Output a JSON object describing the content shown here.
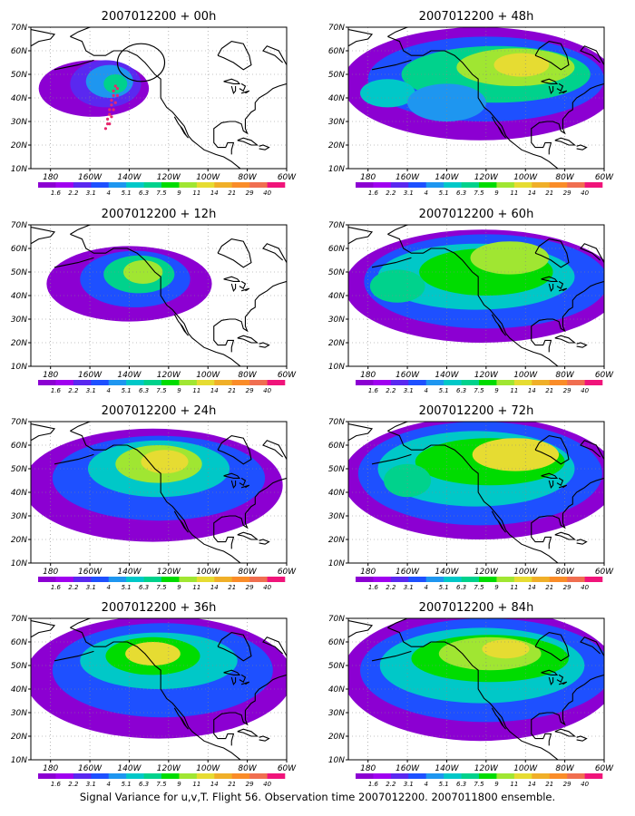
{
  "figure": {
    "caption": "Signal Variance for u,v,T. Flight 56. Observation time 2007012200. 2007011800 ensemble.",
    "lat_labels": [
      "70N",
      "60N",
      "50N",
      "40N",
      "30N",
      "20N",
      "10N"
    ],
    "lon_labels": [
      "180",
      "160W",
      "140W",
      "120W",
      "100W",
      "80W",
      "60W"
    ],
    "colorbar": {
      "labels": [
        "1.6",
        "2.2",
        "3.1",
        "4",
        "5.1",
        "6.3",
        "7.5",
        "9",
        "11",
        "14",
        "21",
        "29",
        "40"
      ],
      "colors": [
        "#8c00d2",
        "#a000f0",
        "#5a28f0",
        "#1e50ff",
        "#1e96f0",
        "#00c8c8",
        "#00d28c",
        "#00dc00",
        "#a0e632",
        "#e6dc32",
        "#f0af28",
        "#fa8c28",
        "#f06e50",
        "#f0147a"
      ]
    },
    "panels": [
      {
        "title": "2007012200 + 00h",
        "lead_hours": 0
      },
      {
        "title": "2007012200 + 48h",
        "lead_hours": 48
      },
      {
        "title": "2007012200 + 12h",
        "lead_hours": 12
      },
      {
        "title": "2007012200 + 60h",
        "lead_hours": 60
      },
      {
        "title": "2007012200 + 24h",
        "lead_hours": 24
      },
      {
        "title": "2007012200 + 72h",
        "lead_hours": 72
      },
      {
        "title": "2007012200 + 36h",
        "lead_hours": 36
      },
      {
        "title": "2007012200 + 84h",
        "lead_hours": 84
      }
    ],
    "map_extent": {
      "lon_min": -190,
      "lon_max": -60,
      "lat_min": 10,
      "lat_max": 70
    },
    "observation_track": {
      "panel": 0,
      "points": [
        [
          -152,
          27
        ],
        [
          -151,
          29
        ],
        [
          -151,
          31
        ],
        [
          -150,
          33
        ],
        [
          -150,
          35
        ],
        [
          -149,
          37
        ],
        [
          -149,
          39
        ],
        [
          -148,
          41
        ],
        [
          -148,
          43
        ],
        [
          -147,
          45
        ],
        [
          -150,
          29
        ],
        [
          -149,
          32
        ],
        [
          -148,
          35
        ],
        [
          -147,
          38
        ],
        [
          -146,
          41
        ],
        [
          -146,
          44
        ]
      ]
    },
    "target_circle": {
      "panel": 0,
      "lon": -134,
      "lat": 55,
      "rlon": 12,
      "rlat": 8
    }
  }
}
